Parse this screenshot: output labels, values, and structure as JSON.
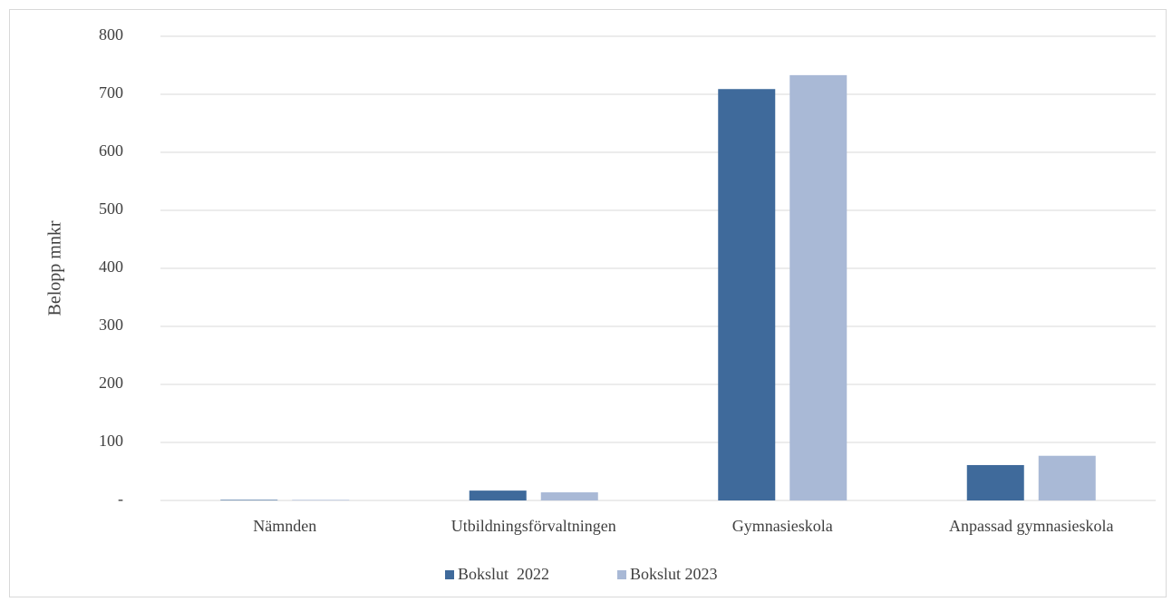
{
  "chart_data": {
    "type": "bar",
    "y_label": "Belopp mnkr",
    "categories": [
      "Nämnden",
      "Utbildningsförvaltningen",
      "Gymnasieskola",
      "Anpassad gymnasieskola"
    ],
    "series": [
      {
        "name": "Bokslut  2022",
        "color": "#3f6a9b",
        "values": [
          1,
          17,
          709,
          61
        ]
      },
      {
        "name": "Bokslut 2023",
        "color": "#a9b9d6",
        "values": [
          1,
          14,
          733,
          77
        ]
      }
    ],
    "ylim": [
      0,
      800
    ],
    "yticks": [
      {
        "value": 0,
        "label": "-"
      },
      100,
      200,
      300,
      400,
      500,
      600,
      700,
      800
    ],
    "grid": true,
    "legend": "bottom"
  }
}
